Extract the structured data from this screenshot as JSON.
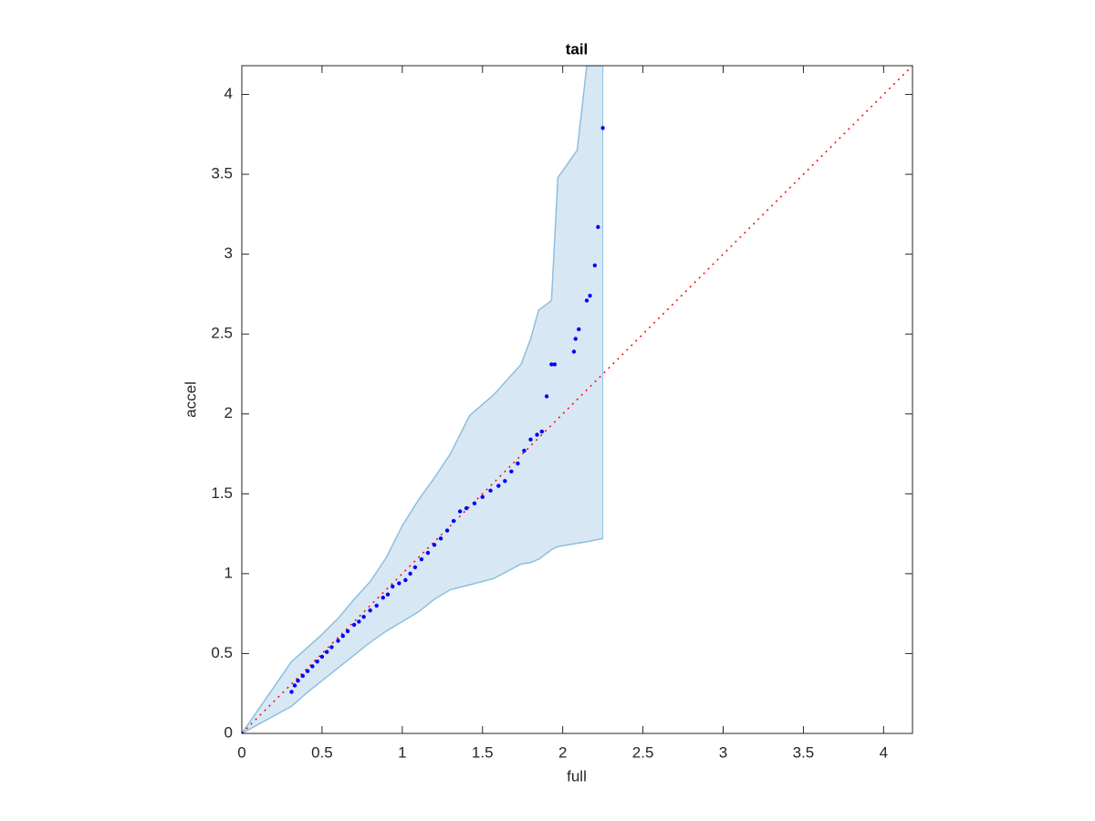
{
  "chart_data": {
    "type": "scatter",
    "title": "tail",
    "xlabel": "full",
    "ylabel": "accel",
    "xlim": [
      0,
      4.18
    ],
    "ylim": [
      0,
      4.18
    ],
    "xticks": [
      0,
      0.5,
      1,
      1.5,
      2,
      2.5,
      3,
      3.5,
      4
    ],
    "yticks": [
      0,
      0.5,
      1,
      1.5,
      2,
      2.5,
      3,
      3.5,
      4
    ],
    "points": {
      "color": "#0000ff",
      "x": [
        0,
        0.31,
        0.33,
        0.35,
        0.38,
        0.41,
        0.44,
        0.47,
        0.5,
        0.53,
        0.56,
        0.6,
        0.63,
        0.66,
        0.7,
        0.73,
        0.76,
        0.8,
        0.84,
        0.88,
        0.91,
        0.94,
        0.98,
        1.02,
        1.05,
        1.08,
        1.12,
        1.16,
        1.2,
        1.24,
        1.28,
        1.32,
        1.36,
        1.4,
        1.45,
        1.5,
        1.55,
        1.6,
        1.64,
        1.68,
        1.72,
        1.76,
        1.8,
        1.84,
        1.87,
        1.9,
        1.93,
        1.95,
        2.07,
        2.08,
        2.1,
        2.15,
        2.17,
        2.2,
        2.22,
        2.25
      ],
      "y": [
        0,
        0.26,
        0.3,
        0.33,
        0.36,
        0.39,
        0.42,
        0.45,
        0.48,
        0.51,
        0.54,
        0.58,
        0.61,
        0.64,
        0.68,
        0.7,
        0.73,
        0.77,
        0.8,
        0.85,
        0.87,
        0.92,
        0.94,
        0.96,
        1.0,
        1.04,
        1.09,
        1.13,
        1.18,
        1.22,
        1.27,
        1.33,
        1.39,
        1.41,
        1.44,
        1.48,
        1.52,
        1.55,
        1.58,
        1.64,
        1.69,
        1.77,
        1.84,
        1.87,
        1.89,
        2.11,
        2.31,
        2.31,
        2.39,
        2.47,
        2.53,
        2.71,
        2.74,
        2.93,
        3.17,
        3.79
      ]
    },
    "band": {
      "color": "#d7e8f4",
      "edge_color": "#8dbfdf",
      "x": [
        0,
        0.31,
        0.4,
        0.5,
        0.6,
        0.7,
        0.8,
        0.9,
        1.0,
        1.1,
        1.2,
        1.3,
        1.42,
        1.57,
        1.74,
        1.8,
        1.85,
        1.93,
        1.97,
        2.09,
        2.15,
        2.25
      ],
      "upper": [
        0,
        0.45,
        0.53,
        0.62,
        0.72,
        0.84,
        0.95,
        1.1,
        1.3,
        1.46,
        1.6,
        1.75,
        1.99,
        2.12,
        2.31,
        2.47,
        2.65,
        2.71,
        3.48,
        3.65,
        4.18,
        4.18
      ],
      "lower": [
        0,
        0.17,
        0.25,
        0.33,
        0.41,
        0.49,
        0.57,
        0.64,
        0.7,
        0.76,
        0.84,
        0.9,
        0.93,
        0.97,
        1.06,
        1.07,
        1.09,
        1.15,
        1.17,
        1.19,
        1.2,
        1.22
      ]
    },
    "reference": {
      "color": "#ff0000",
      "x": [
        0,
        4.18
      ],
      "y": [
        0,
        4.18
      ]
    }
  }
}
